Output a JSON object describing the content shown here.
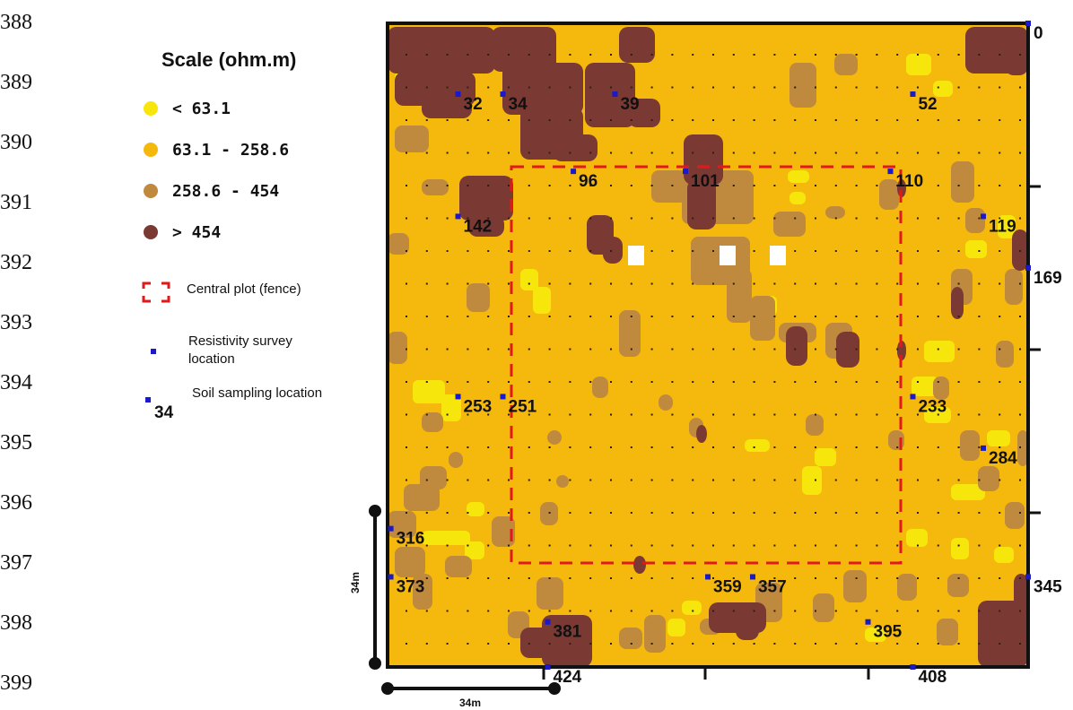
{
  "line_numbers": [
    "388",
    "389",
    "390",
    "391",
    "392",
    "393",
    "394",
    "395",
    "396",
    "397",
    "398",
    "399"
  ],
  "legend": {
    "title": "Scale (ohm.m)",
    "classes": [
      {
        "label": "< 63.1",
        "color": "#f7e60b"
      },
      {
        "label": "63.1 - 258.6",
        "color": "#f5b80d"
      },
      {
        "label": "258.6 - 454",
        "color": "#c08a3e"
      },
      {
        "label": "> 454",
        "color": "#7a3a33"
      }
    ],
    "fence_label": "Central plot (fence)",
    "fence_color": "#e01a1a",
    "survey_label_line1": "Resistivity survey",
    "survey_label_line2": "location",
    "sampling_label": "Soil sampling location",
    "sampling_example": "34",
    "point_color": "#1a1acc"
  },
  "sites": [
    {
      "label": "0",
      "pos": [
        100,
        0
      ]
    },
    {
      "label": "32",
      "pos": [
        11,
        11
      ]
    },
    {
      "label": "34",
      "pos": [
        18,
        11
      ]
    },
    {
      "label": "39",
      "pos": [
        35.5,
        11
      ]
    },
    {
      "label": "52",
      "pos": [
        82,
        11
      ]
    },
    {
      "label": "96",
      "pos": [
        29,
        23
      ]
    },
    {
      "label": "101",
      "pos": [
        46.5,
        23
      ]
    },
    {
      "label": "110",
      "pos": [
        78.5,
        23
      ]
    },
    {
      "label": "142",
      "pos": [
        11,
        30
      ]
    },
    {
      "label": "119",
      "pos": [
        93,
        30
      ]
    },
    {
      "label": "169",
      "pos": [
        100,
        38
      ]
    },
    {
      "label": "253",
      "pos": [
        11,
        58
      ]
    },
    {
      "label": "251",
      "pos": [
        18,
        58
      ]
    },
    {
      "label": "233",
      "pos": [
        82,
        58
      ]
    },
    {
      "label": "284",
      "pos": [
        93,
        66
      ]
    },
    {
      "label": "316",
      "pos": [
        0.5,
        78.5
      ]
    },
    {
      "label": "373",
      "pos": [
        0.5,
        86
      ]
    },
    {
      "label": "359",
      "pos": [
        50,
        86
      ]
    },
    {
      "label": "357",
      "pos": [
        57,
        86
      ]
    },
    {
      "label": "345",
      "pos": [
        100,
        86
      ]
    },
    {
      "label": "381",
      "pos": [
        25,
        93
      ]
    },
    {
      "label": "395",
      "pos": [
        75,
        93
      ]
    },
    {
      "label": "424",
      "pos": [
        25,
        100
      ]
    },
    {
      "label": "408",
      "pos": [
        82,
        100
      ]
    }
  ],
  "scale_bars": {
    "vertical": "34m",
    "horizontal": "34m"
  }
}
